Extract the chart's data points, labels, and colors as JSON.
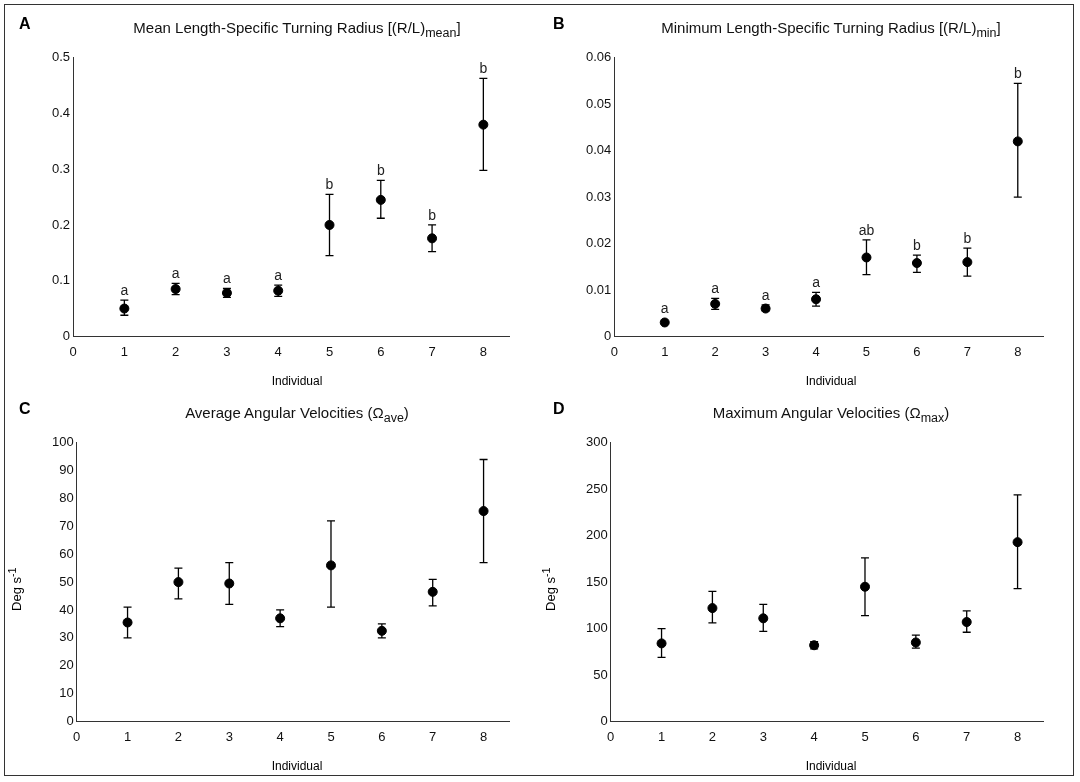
{
  "chart_data": [
    {
      "type": "scatter",
      "title": "Mean Length-Specific Turning Radius [(R/L)$_{mean}$]",
      "xlabel": "Individual",
      "x": [
        1,
        2,
        3,
        4,
        5,
        6,
        7,
        8
      ],
      "values": [
        0.05,
        0.085,
        0.078,
        0.082,
        0.2,
        0.245,
        0.176,
        0.38
      ],
      "errors": [
        [
          0.038,
          0.065
        ],
        0.01,
        0.008,
        0.01,
        [
          0.145,
          0.255
        ],
        [
          0.212,
          0.28
        ],
        [
          0.152,
          0.2
        ],
        [
          0.298,
          0.463
        ]
      ],
      "color": "#000000",
      "marker": "circle",
      "xlim": [
        0,
        8.5
      ],
      "xticks": [
        0,
        1,
        2,
        3,
        4,
        5,
        6,
        7,
        8
      ],
      "ylim": [
        0,
        0.5
      ],
      "yticks": [
        0,
        0.1,
        0.2,
        0.3,
        0.4,
        0.5
      ],
      "grid": false,
      "legend": false,
      "annotations": [
        "A",
        {
          "text": "a",
          "x": 1,
          "y": 0.065
        },
        {
          "text": "a",
          "x": 2,
          "y": 0.095
        },
        {
          "text": "a",
          "x": 3,
          "y": 0.086
        },
        {
          "text": "a",
          "x": 4,
          "y": 0.092
        },
        {
          "text": "b",
          "x": 5,
          "y": 0.255
        },
        {
          "text": "b",
          "x": 6,
          "y": 0.28
        },
        {
          "text": "b",
          "x": 7,
          "y": 0.2
        },
        {
          "text": "b",
          "x": 8,
          "y": 0.463
        }
      ]
    },
    {
      "type": "scatter",
      "title": "Minimum Length-Specific Turning Radius [(R/L)$_{min}$]",
      "xlabel": "Individual",
      "x": [
        1,
        2,
        3,
        4,
        5,
        6,
        7,
        8
      ],
      "values": [
        0.003,
        0.007,
        0.006,
        0.008,
        0.017,
        0.0158,
        0.016,
        0.042
      ],
      "errors": [
        null,
        [
          0.0058,
          0.0082
        ],
        [
          0.0055,
          0.0068
        ],
        [
          0.0065,
          0.0095
        ],
        [
          0.0133,
          0.0208
        ],
        [
          0.0138,
          0.0175
        ],
        [
          0.013,
          0.019
        ],
        [
          0.03,
          0.0545
        ]
      ],
      "color": "#000000",
      "marker": "circle",
      "xlim": [
        0,
        8.5
      ],
      "xticks": [
        0,
        1,
        2,
        3,
        4,
        5,
        6,
        7,
        8
      ],
      "ylim": [
        0,
        0.06
      ],
      "yticks": [
        0,
        0.01,
        0.02,
        0.03,
        0.04,
        0.05,
        0.06
      ],
      "grid": false,
      "legend": false,
      "annotations": [
        "B",
        {
          "text": "a",
          "x": 1,
          "y": 0.003
        },
        {
          "text": "a",
          "x": 2,
          "y": 0.0082
        },
        {
          "text": "a",
          "x": 3,
          "y": 0.0068
        },
        {
          "text": "a",
          "x": 4,
          "y": 0.0095
        },
        {
          "text": "ab",
          "x": 5,
          "y": 0.0208
        },
        {
          "text": "b",
          "x": 6,
          "y": 0.0175
        },
        {
          "text": "b",
          "x": 7,
          "y": 0.019
        },
        {
          "text": "b",
          "x": 8,
          "y": 0.0545
        }
      ]
    },
    {
      "type": "scatter",
      "title": "Average Angular Velocities (Ω$_{ave}$)",
      "xlabel": "Individual",
      "ylabel": "Deg s$^{-1}$",
      "x": [
        1,
        2,
        3,
        4,
        5,
        6,
        7,
        8
      ],
      "values": [
        35.5,
        50,
        49.5,
        37,
        56,
        32.5,
        46.5,
        75.5
      ],
      "errors": [
        [
          30,
          41
        ],
        [
          44,
          55
        ],
        [
          42,
          57
        ],
        [
          34,
          40
        ],
        [
          41,
          72
        ],
        [
          30,
          35
        ],
        [
          41.5,
          51
        ],
        [
          57,
          94
        ]
      ],
      "color": "#000000",
      "marker": "circle",
      "xlim": [
        0,
        8.5
      ],
      "xticks": [
        0,
        1,
        2,
        3,
        4,
        5,
        6,
        7,
        8
      ],
      "ylim": [
        0,
        100
      ],
      "yticks": [
        0,
        10,
        20,
        30,
        40,
        50,
        60,
        70,
        80,
        90,
        100
      ],
      "grid": false,
      "legend": false,
      "annotations": [
        "C"
      ]
    },
    {
      "type": "scatter",
      "title": "Maximum Angular Velocities (Ω$_{max}$)",
      "xlabel": "Individual",
      "ylabel": "Deg s$^{-1}$",
      "x": [
        1,
        2,
        3,
        4,
        5,
        6,
        7,
        8
      ],
      "values": [
        84,
        122,
        111,
        82,
        145,
        85,
        107,
        193
      ],
      "errors": [
        [
          69,
          100
        ],
        [
          106,
          140
        ],
        [
          97,
          126
        ],
        [
          78,
          86
        ],
        [
          114,
          176
        ],
        [
          79,
          93
        ],
        [
          96,
          119
        ],
        [
          143,
          244
        ]
      ],
      "color": "#000000",
      "marker": "circle",
      "xlim": [
        0,
        8.5
      ],
      "xticks": [
        0,
        1,
        2,
        3,
        4,
        5,
        6,
        7,
        8
      ],
      "ylim": [
        0,
        300
      ],
      "yticks": [
        0,
        50,
        100,
        150,
        200,
        250,
        300
      ],
      "grid": false,
      "legend": false,
      "annotations": [
        "D"
      ]
    }
  ]
}
